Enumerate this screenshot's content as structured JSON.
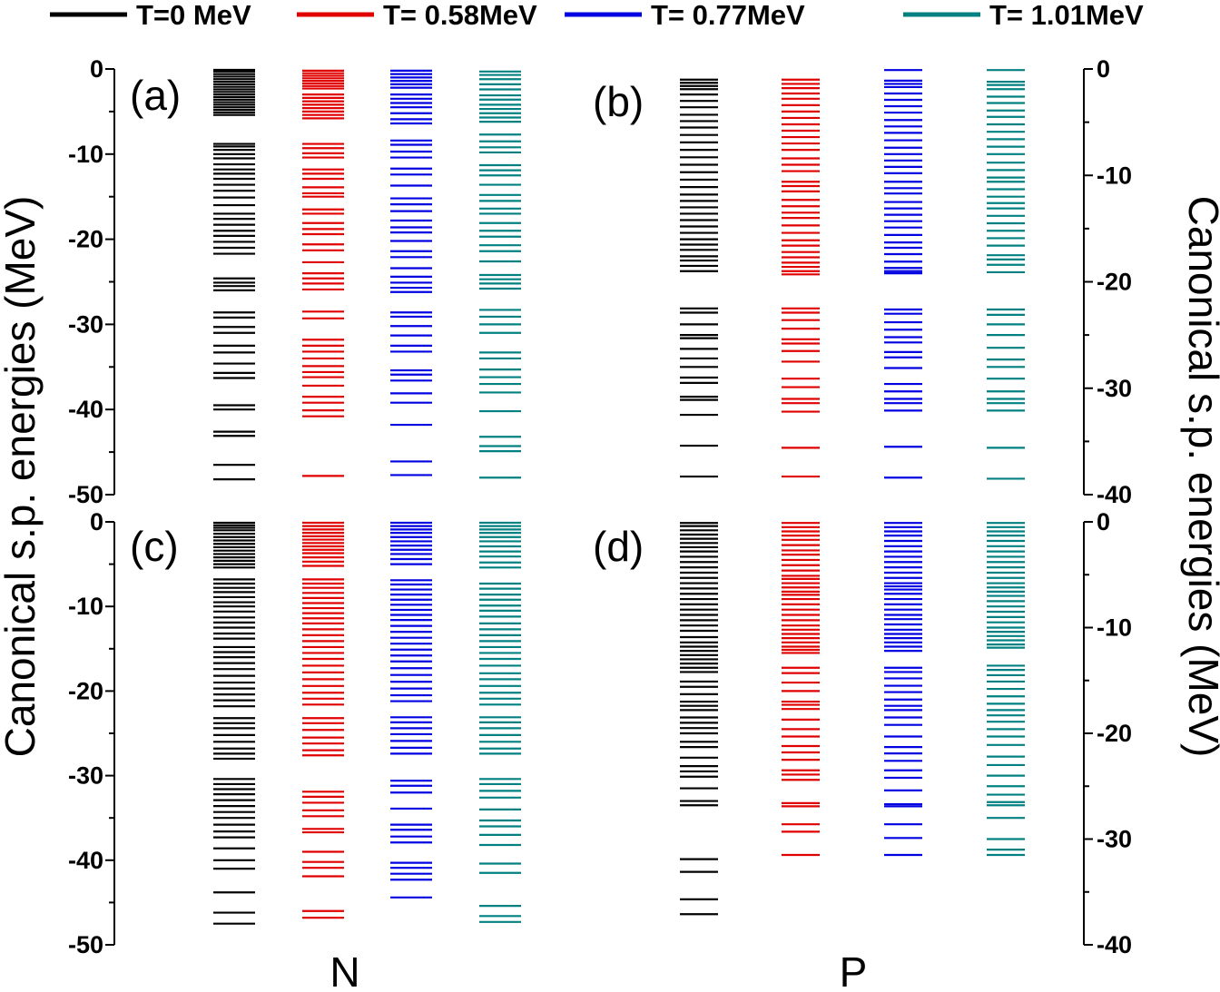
{
  "chart_data": {
    "type": "level-scheme",
    "ylabel": "Canonical s.p. energies (MeV)",
    "ylabel_right": "Canonical s.p. energies (MeV)",
    "group_labels": [
      "N",
      "P"
    ],
    "series": [
      {
        "name": "T=0 MeV",
        "color": "#000000"
      },
      {
        "name": "T= 0.58MeV",
        "color": "#e00000"
      },
      {
        "name": "T= 0.77MeV",
        "color": "#0000e0"
      },
      {
        "name": "T= 1.01MeV",
        "color": "#008080"
      }
    ],
    "panels": [
      {
        "label": "(a)",
        "side": "left",
        "ylim": [
          -50,
          0
        ],
        "ticks": [
          0,
          -10,
          -20,
          -30,
          -40,
          -50
        ],
        "tick_labels": [
          "0",
          "-10",
          "-20",
          "-30",
          "-40",
          "-50"
        ],
        "columns": [
          [
            -0.1,
            -0.3,
            -0.6,
            -0.9,
            -1.2,
            -1.5,
            -1.8,
            -2.1,
            -2.4,
            -2.7,
            -3.0,
            -3.3,
            -3.6,
            -3.9,
            -4.2,
            -4.5,
            -4.8,
            -5.1,
            -5.4,
            -8.8,
            -9.1,
            -9.5,
            -10.0,
            -10.5,
            -11.2,
            -11.8,
            -12.3,
            -12.9,
            -13.6,
            -14.3,
            -15.1,
            -16.0,
            -17.0,
            -17.6,
            -18.3,
            -19.0,
            -19.6,
            -20.3,
            -21.0,
            -21.7,
            -24.6,
            -25.1,
            -25.5,
            -26.0,
            -28.6,
            -29.2,
            -30.3,
            -31.0,
            -32.5,
            -33.3,
            -34.6,
            -35.7,
            -36.3,
            -39.5,
            -40.0,
            -42.6,
            -43.1,
            -46.5,
            -48.2
          ],
          [
            -0.2,
            -0.5,
            -0.8,
            -1.1,
            -1.4,
            -1.7,
            -2.0,
            -2.3,
            -3.0,
            -3.4,
            -3.8,
            -4.2,
            -4.6,
            -5.0,
            -5.4,
            -5.8,
            -8.8,
            -9.3,
            -9.9,
            -10.4,
            -11.8,
            -12.3,
            -12.9,
            -13.9,
            -14.6,
            -15.0,
            -16.5,
            -17.0,
            -18.1,
            -18.8,
            -19.4,
            -20.6,
            -21.3,
            -22.7,
            -24.0,
            -24.6,
            -25.2,
            -25.9,
            -28.5,
            -29.3,
            -31.8,
            -32.5,
            -33.2,
            -34.0,
            -34.9,
            -35.6,
            -36.2,
            -37.2,
            -38.5,
            -39.2,
            -40.1,
            -40.8,
            -47.8
          ],
          [
            -0.2,
            -0.6,
            -1.0,
            -1.4,
            -1.8,
            -2.2,
            -3.0,
            -3.5,
            -4.0,
            -4.5,
            -5.2,
            -5.9,
            -6.4,
            -8.4,
            -8.9,
            -9.7,
            -10.4,
            -11.7,
            -12.4,
            -13.7,
            -15.2,
            -15.9,
            -16.7,
            -17.8,
            -18.6,
            -19.2,
            -20.2,
            -21.4,
            -22.1,
            -23.4,
            -24.4,
            -25.1,
            -25.7,
            -26.2,
            -28.6,
            -29.1,
            -30.2,
            -31.3,
            -32.5,
            -33.2,
            -35.4,
            -35.9,
            -36.6,
            -38.1,
            -39.2,
            -41.8,
            -46.1,
            -47.7
          ],
          [
            -0.3,
            -0.7,
            -1.2,
            -1.8,
            -2.4,
            -3.1,
            -3.6,
            -4.2,
            -4.7,
            -5.2,
            -5.7,
            -6.2,
            -7.7,
            -8.5,
            -9.2,
            -9.8,
            -11.3,
            -11.9,
            -12.5,
            -13.6,
            -14.8,
            -15.5,
            -16.4,
            -17.0,
            -18.1,
            -19.0,
            -19.7,
            -20.7,
            -21.4,
            -22.6,
            -24.2,
            -24.7,
            -25.2,
            -25.8,
            -28.3,
            -29.1,
            -30.0,
            -31.0,
            -33.3,
            -34.0,
            -35.3,
            -36.2,
            -37.0,
            -38.0,
            -40.2,
            -43.2,
            -44.3,
            -44.9,
            -48.0
          ]
        ]
      },
      {
        "label": "(b)",
        "side": "right",
        "ylim": [
          -40,
          0
        ],
        "ticks": [
          0,
          -10,
          -20,
          -30,
          -40
        ],
        "tick_labels": [
          "0",
          "-10",
          "-20",
          "-30",
          "-40"
        ],
        "columns": [
          [
            -1.0,
            -1.3,
            -1.6,
            -1.9,
            -2.4,
            -3.0,
            -3.6,
            -4.3,
            -4.9,
            -5.5,
            -6.2,
            -6.9,
            -7.6,
            -8.3,
            -9.0,
            -9.7,
            -10.4,
            -11.1,
            -11.8,
            -12.4,
            -13.0,
            -13.6,
            -14.2,
            -14.8,
            -15.4,
            -16.0,
            -16.5,
            -17.0,
            -17.6,
            -18.0,
            -18.5,
            -19.0,
            -22.5,
            -22.9,
            -24.0,
            -25.0,
            -25.3,
            -26.3,
            -27.2,
            -28.0,
            -29.0,
            -29.5,
            -30.8,
            -31.1,
            -32.5,
            -35.4,
            -38.3
          ],
          [
            -1.0,
            -1.4,
            -1.8,
            -2.3,
            -2.8,
            -3.4,
            -4.0,
            -4.6,
            -5.2,
            -5.8,
            -6.4,
            -7.0,
            -7.6,
            -8.4,
            -9.0,
            -9.6,
            -10.6,
            -11.0,
            -11.5,
            -12.3,
            -12.9,
            -13.5,
            -14.0,
            -14.7,
            -15.4,
            -16.1,
            -16.6,
            -17.2,
            -17.7,
            -18.2,
            -18.6,
            -19.0,
            -19.3,
            -22.5,
            -22.9,
            -23.6,
            -24.4,
            -25.4,
            -25.8,
            -26.5,
            -27.5,
            -29.1,
            -29.9,
            -31.0,
            -31.4,
            -32.2,
            -35.6,
            -38.3
          ],
          [
            -0.1,
            -1.1,
            -1.4,
            -1.7,
            -2.3,
            -2.9,
            -3.5,
            -4.1,
            -4.8,
            -5.4,
            -6.0,
            -6.7,
            -7.4,
            -8.0,
            -8.6,
            -9.2,
            -9.8,
            -10.6,
            -11.2,
            -11.7,
            -12.5,
            -13.1,
            -13.7,
            -14.3,
            -14.9,
            -15.6,
            -16.3,
            -16.8,
            -17.4,
            -18.1,
            -18.7,
            -19.0,
            -19.2,
            -22.6,
            -23.0,
            -23.8,
            -24.5,
            -25.2,
            -25.7,
            -26.6,
            -27.1,
            -28.1,
            -29.6,
            -30.3,
            -31.0,
            -31.4,
            -32.1,
            -35.5,
            -38.4
          ],
          [
            -0.1,
            -1.2,
            -1.5,
            -1.9,
            -2.6,
            -3.2,
            -3.9,
            -4.5,
            -5.2,
            -5.9,
            -6.6,
            -7.3,
            -8.0,
            -8.8,
            -9.5,
            -10.2,
            -10.6,
            -11.3,
            -12.0,
            -12.6,
            -13.1,
            -13.8,
            -14.5,
            -15.2,
            -15.9,
            -16.6,
            -17.5,
            -17.9,
            -18.4,
            -19.1,
            -22.6,
            -23.1,
            -24.0,
            -25.0,
            -26.2,
            -27.3,
            -28.0,
            -29.1,
            -30.3,
            -31.0,
            -31.4,
            -32.1,
            -35.6,
            -38.5
          ]
        ]
      },
      {
        "label": "(c)",
        "side": "left",
        "ylim": [
          -50,
          0
        ],
        "ticks": [
          0,
          -10,
          -20,
          -30,
          -40,
          -50
        ],
        "tick_labels": [
          "0",
          "-10",
          "-20",
          "-30",
          "-40",
          "-50"
        ],
        "columns": [
          [
            -0.1,
            -0.4,
            -0.7,
            -1.0,
            -1.4,
            -1.8,
            -2.2,
            -2.6,
            -3.0,
            -3.4,
            -3.8,
            -4.2,
            -4.6,
            -5.0,
            -5.4,
            -6.8,
            -7.3,
            -7.8,
            -8.3,
            -8.9,
            -9.5,
            -10.0,
            -10.6,
            -11.3,
            -11.9,
            -12.5,
            -13.2,
            -13.8,
            -14.8,
            -15.4,
            -16.0,
            -16.7,
            -17.4,
            -18.2,
            -19.0,
            -19.7,
            -20.4,
            -21.1,
            -21.8,
            -23.2,
            -23.8,
            -24.4,
            -25.2,
            -26.0,
            -26.8,
            -27.4,
            -28.0,
            -30.4,
            -31.0,
            -31.6,
            -32.2,
            -32.9,
            -33.6,
            -34.3,
            -35.0,
            -35.8,
            -36.6,
            -37.3,
            -38.6,
            -40.0,
            -41.0,
            -43.8,
            -46.2,
            -47.5
          ],
          [
            -0.1,
            -0.5,
            -0.9,
            -1.3,
            -1.7,
            -2.1,
            -2.5,
            -2.9,
            -3.3,
            -3.7,
            -4.2,
            -4.7,
            -5.2,
            -6.8,
            -7.3,
            -7.8,
            -8.4,
            -9.0,
            -9.6,
            -10.2,
            -10.8,
            -11.4,
            -12.0,
            -12.7,
            -13.4,
            -14.1,
            -14.8,
            -15.5,
            -16.2,
            -17.0,
            -17.8,
            -18.6,
            -19.4,
            -20.2,
            -20.9,
            -21.6,
            -23.2,
            -23.8,
            -24.6,
            -25.5,
            -26.2,
            -27.0,
            -27.6,
            -31.9,
            -32.5,
            -33.2,
            -34.1,
            -34.8,
            -36.3,
            -36.7,
            -39.0,
            -40.2,
            -40.9,
            -41.9,
            -46.0,
            -46.8
          ],
          [
            -0.1,
            -0.5,
            -0.9,
            -1.3,
            -1.8,
            -2.3,
            -2.8,
            -3.3,
            -3.8,
            -4.4,
            -5.0,
            -6.9,
            -7.4,
            -8.0,
            -8.6,
            -9.2,
            -9.8,
            -10.4,
            -11.0,
            -11.6,
            -12.3,
            -13.0,
            -13.7,
            -14.4,
            -15.1,
            -15.8,
            -16.5,
            -17.3,
            -18.1,
            -18.9,
            -19.7,
            -20.5,
            -21.2,
            -23.1,
            -23.7,
            -24.4,
            -25.1,
            -25.9,
            -26.7,
            -27.4,
            -30.6,
            -31.2,
            -32.0,
            -33.9,
            -35.8,
            -36.4,
            -37.2,
            -37.9,
            -40.3,
            -40.9,
            -41.6,
            -42.3,
            -44.4
          ],
          [
            -0.1,
            -0.5,
            -0.9,
            -1.3,
            -1.8,
            -2.3,
            -2.9,
            -3.5,
            -4.1,
            -4.8,
            -5.4,
            -7.3,
            -7.9,
            -8.6,
            -9.2,
            -9.9,
            -10.5,
            -11.2,
            -12.0,
            -12.7,
            -13.4,
            -14.1,
            -14.8,
            -15.5,
            -16.2,
            -17.0,
            -17.9,
            -18.6,
            -19.4,
            -20.2,
            -20.9,
            -21.6,
            -23.1,
            -23.7,
            -24.4,
            -25.2,
            -26.0,
            -26.8,
            -27.4,
            -30.4,
            -31.0,
            -31.8,
            -32.6,
            -34.0,
            -35.3,
            -36.0,
            -37.0,
            -38.2,
            -40.4,
            -41.5,
            -45.4,
            -46.6,
            -47.3
          ]
        ]
      },
      {
        "label": "(d)",
        "side": "right",
        "ylim": [
          -40,
          0
        ],
        "ticks": [
          0,
          -10,
          -20,
          -30,
          -40
        ],
        "tick_labels": [
          "0",
          "-10",
          "-20",
          "-30",
          "-40"
        ],
        "columns": [
          [
            -0.1,
            -0.4,
            -0.8,
            -1.2,
            -1.6,
            -2.0,
            -2.4,
            -2.8,
            -3.3,
            -3.8,
            -4.3,
            -4.8,
            -5.3,
            -5.8,
            -6.3,
            -6.8,
            -7.3,
            -7.8,
            -8.3,
            -8.8,
            -9.3,
            -9.8,
            -10.3,
            -10.9,
            -11.4,
            -11.8,
            -12.2,
            -12.6,
            -13.0,
            -13.4,
            -13.8,
            -14.2,
            -15.1,
            -15.6,
            -16.3,
            -17.0,
            -17.4,
            -17.8,
            -18.5,
            -19.0,
            -19.5,
            -20.0,
            -20.8,
            -21.3,
            -22.3,
            -23.1,
            -23.6,
            -24.1,
            -25.2,
            -26.4,
            -26.8,
            -31.9,
            -33.1,
            -35.7,
            -37.1
          ],
          [
            -0.1,
            -0.5,
            -0.9,
            -1.3,
            -1.7,
            -2.2,
            -2.7,
            -3.1,
            -3.6,
            -4.1,
            -4.6,
            -5.1,
            -5.4,
            -5.8,
            -6.2,
            -6.6,
            -6.9,
            -7.3,
            -7.8,
            -8.3,
            -8.8,
            -9.3,
            -9.8,
            -10.2,
            -10.6,
            -11.0,
            -11.4,
            -11.8,
            -12.1,
            -12.4,
            -13.8,
            -14.3,
            -15.2,
            -16.0,
            -17.0,
            -17.3,
            -17.7,
            -18.7,
            -19.6,
            -20.3,
            -21.2,
            -21.8,
            -22.5,
            -23.5,
            -23.9,
            -24.4,
            -26.6,
            -26.9,
            -28.6,
            -29.3,
            -31.5
          ],
          [
            -0.1,
            -0.5,
            -0.9,
            -1.3,
            -1.8,
            -2.3,
            -2.8,
            -3.3,
            -3.8,
            -4.3,
            -4.8,
            -5.3,
            -5.8,
            -6.1,
            -6.4,
            -6.8,
            -7.3,
            -7.8,
            -8.3,
            -8.8,
            -9.2,
            -9.7,
            -10.2,
            -10.6,
            -11.0,
            -11.4,
            -11.8,
            -12.2,
            -13.8,
            -14.2,
            -14.8,
            -15.5,
            -16.1,
            -16.8,
            -17.4,
            -17.8,
            -18.5,
            -19.2,
            -20.3,
            -21.3,
            -21.9,
            -22.6,
            -23.5,
            -24.2,
            -25.4,
            -26.7,
            -26.9,
            -28.6,
            -29.9,
            -31.5
          ],
          [
            -0.1,
            -0.5,
            -0.9,
            -1.3,
            -1.8,
            -2.3,
            -2.8,
            -3.3,
            -3.8,
            -4.3,
            -4.8,
            -5.3,
            -5.8,
            -6.2,
            -6.6,
            -7.0,
            -7.5,
            -8.0,
            -8.5,
            -9.0,
            -9.5,
            -10.0,
            -10.4,
            -10.8,
            -11.2,
            -11.6,
            -11.9,
            -13.6,
            -14.0,
            -14.5,
            -15.1,
            -15.8,
            -16.5,
            -17.2,
            -17.8,
            -18.3,
            -18.9,
            -19.6,
            -20.3,
            -21.1,
            -22.2,
            -23.0,
            -24.0,
            -25.0,
            -25.8,
            -26.5,
            -26.8,
            -28.0,
            -30.0,
            -31.0,
            -31.5
          ]
        ]
      }
    ]
  }
}
